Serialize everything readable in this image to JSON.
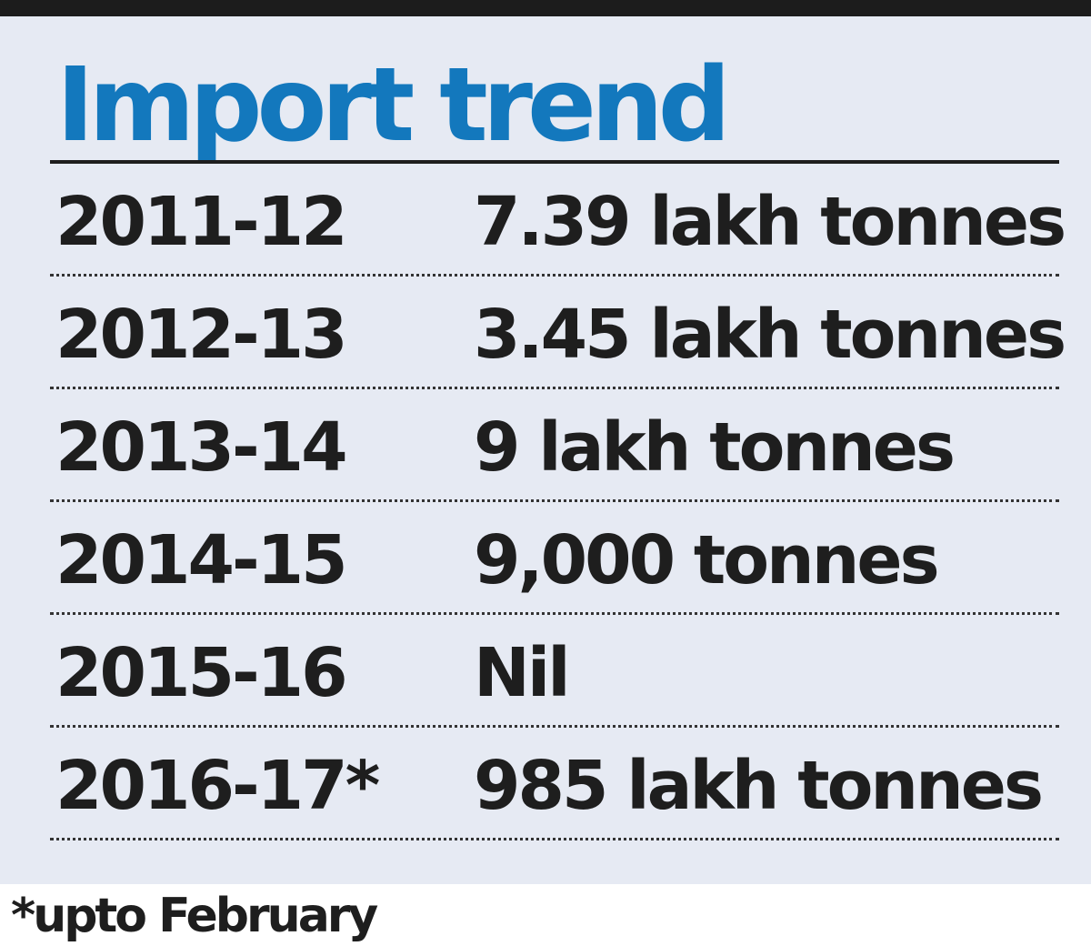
{
  "title": "Import trend",
  "colors": {
    "title": "#1378bd",
    "panel_background": "#e6eaf3",
    "text": "#1e1e1e"
  },
  "chart_data": {
    "type": "table",
    "title": "Import trend",
    "rows": [
      {
        "year": "2011-12",
        "value": "7.39 lakh tonnes"
      },
      {
        "year": "2012-13",
        "value": "3.45 lakh tonnes"
      },
      {
        "year": "2013-14",
        "value": "9 lakh tonnes"
      },
      {
        "year": "2014-15",
        "value": "9,000 tonnes"
      },
      {
        "year": "2015-16",
        "value": "Nil"
      },
      {
        "year": "2016-17*",
        "value": "985 lakh tonnes"
      }
    ]
  },
  "footnote": "*upto February"
}
